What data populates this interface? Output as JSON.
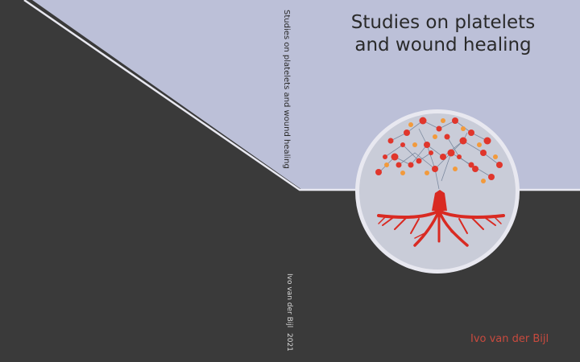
{
  "cover": {
    "title_line1": "Studies on platelets",
    "title_line2": "and wound healing",
    "author": "Ivo van der Bijl"
  },
  "spine": {
    "title": "Studies on platelets and wound healing",
    "author": "Ivo van der Bijl",
    "year": "2021"
  },
  "colors": {
    "lavender": "#bcc0d8",
    "dark": "#3a3a3a",
    "accent_red": "#c84a3e",
    "line": "#e8e8f0"
  },
  "icons": [
    "platelet-tree-emblem"
  ]
}
